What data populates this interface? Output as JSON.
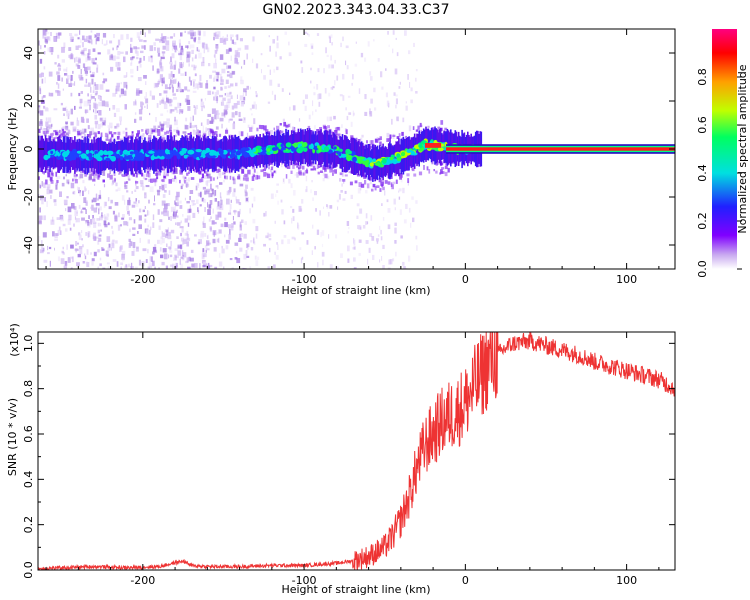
{
  "figure_title": "GN02.2023.343.04.33.C37",
  "chart_data": [
    {
      "type": "heatmap",
      "title": "GN02.2023.343.04.33.C37",
      "xlabel": "Height of straight line (km)",
      "ylabel": "Frequency (Hz)",
      "xlim": [
        -265,
        130
      ],
      "ylim": [
        -50,
        50
      ],
      "x_ticks": [
        -200,
        -100,
        0,
        100
      ],
      "y_ticks": [
        -40,
        -20,
        0,
        20,
        40
      ],
      "colorbar": {
        "label": "Normalized spectral amplitude",
        "range": [
          0,
          1
        ],
        "ticks": [
          "0.0",
          "0.2",
          "0.4",
          "0.6",
          "0.8"
        ],
        "colors": [
          "#ffffff",
          "#c8a8f0",
          "#8000ff",
          "#2020ff",
          "#00e0e0",
          "#00ff60",
          "#c0ff00",
          "#ffa000",
          "#ff0000",
          "#ff0080"
        ]
      },
      "central_frequency_trace": {
        "x": [
          -265,
          -220,
          -180,
          -140,
          -120,
          -100,
          -85,
          -70,
          -58,
          -48,
          -40,
          -32,
          -25,
          -15,
          -5,
          5,
          50,
          100,
          130
        ],
        "y": [
          -2,
          -3,
          -2,
          -2,
          0,
          1,
          0,
          -3,
          -6,
          -5,
          -3,
          -1,
          2,
          1,
          0,
          0,
          0,
          0,
          0
        ]
      },
      "grid": false
    },
    {
      "type": "line",
      "xlabel": "Height of straight line (km)",
      "ylabel": "SNR (10 * v/v)",
      "y_multiplier": "(x10⁴)",
      "xlim": [
        -265,
        130
      ],
      "ylim": [
        0,
        1.05
      ],
      "x_ticks": [
        -200,
        -100,
        0,
        100
      ],
      "y_ticks": [
        "0.0",
        "0.2",
        "0.4",
        "0.6",
        "0.8",
        "1.0"
      ],
      "series": [
        {
          "color": "#ee3333",
          "x": [
            -265,
            -250,
            -230,
            -210,
            -190,
            -175,
            -170,
            -160,
            -140,
            -120,
            -100,
            -90,
            -80,
            -70,
            -60,
            -50,
            -45,
            -40,
            -35,
            -30,
            -25,
            -20,
            -15,
            -10,
            -5,
            0,
            5,
            10,
            15,
            20,
            25,
            30,
            40,
            50,
            60,
            70,
            80,
            90,
            100,
            110,
            120,
            130
          ],
          "y": [
            0.005,
            0.01,
            0.015,
            0.01,
            0.015,
            0.04,
            0.02,
            0.015,
            0.015,
            0.02,
            0.02,
            0.025,
            0.03,
            0.04,
            0.06,
            0.1,
            0.15,
            0.22,
            0.32,
            0.45,
            0.55,
            0.6,
            0.65,
            0.68,
            0.7,
            0.74,
            0.8,
            0.86,
            0.92,
            0.95,
            0.98,
            1.0,
            1.01,
            0.99,
            0.97,
            0.95,
            0.92,
            0.9,
            0.88,
            0.86,
            0.84,
            0.8
          ]
        }
      ],
      "grid": false
    }
  ]
}
